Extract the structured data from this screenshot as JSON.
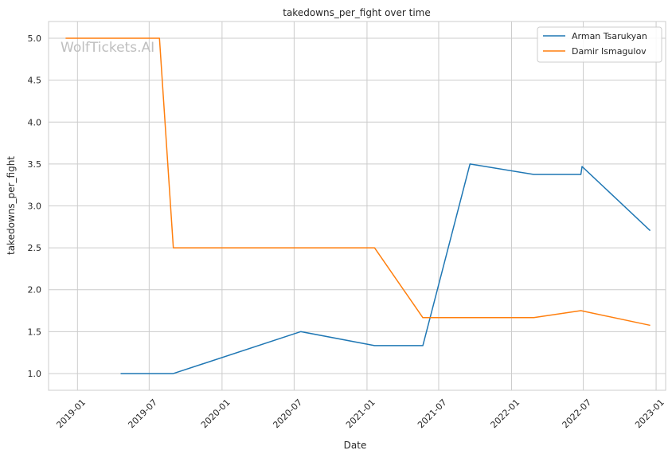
{
  "watermark": "WolfTickets.AI",
  "chart_data": {
    "type": "line",
    "title": "takedowns_per_fight over time",
    "xlabel": "Date",
    "ylabel": "takedowns_per_fight",
    "ylim": [
      0.8,
      5.2
    ],
    "xlim": [
      "2018-10-20",
      "2023-01-25"
    ],
    "grid": true,
    "legend_position": "top-right",
    "x_ticks": [
      "2019-01-01",
      "2019-07-01",
      "2020-01-01",
      "2020-07-01",
      "2021-01-01",
      "2021-07-01",
      "2022-01-01",
      "2022-07-01",
      "2023-01-01"
    ],
    "x_tick_labels": [
      "2019-01",
      "2019-07",
      "2020-01",
      "2020-07",
      "2021-01",
      "2021-07",
      "2022-01",
      "2022-07",
      "2023-01"
    ],
    "y_ticks": [
      1.0,
      1.5,
      2.0,
      2.5,
      3.0,
      3.5,
      4.0,
      4.5,
      5.0
    ],
    "y_tick_labels": [
      "1.0",
      "1.5",
      "2.0",
      "2.5",
      "3.0",
      "3.5",
      "4.0",
      "4.5",
      "5.0"
    ],
    "series": [
      {
        "name": "Arman Tsarukyan",
        "color": "#1f77b4",
        "points": [
          {
            "x": "2019-04-20",
            "y": 1.0
          },
          {
            "x": "2019-08-31",
            "y": 1.0
          },
          {
            "x": "2020-07-18",
            "y": 1.5
          },
          {
            "x": "2021-01-20",
            "y": 1.333
          },
          {
            "x": "2021-05-22",
            "y": 1.333
          },
          {
            "x": "2021-09-18",
            "y": 3.5
          },
          {
            "x": "2022-02-26",
            "y": 3.375
          },
          {
            "x": "2022-06-25",
            "y": 3.375
          },
          {
            "x": "2022-06-28",
            "y": 3.47
          },
          {
            "x": "2022-12-17",
            "y": 2.705
          }
        ]
      },
      {
        "name": "Damir Ismagulov",
        "color": "#ff7f0e",
        "points": [
          {
            "x": "2018-12-02",
            "y": 5.0
          },
          {
            "x": "2019-07-27",
            "y": 5.0
          },
          {
            "x": "2019-08-31",
            "y": 2.5
          },
          {
            "x": "2021-01-20",
            "y": 2.5
          },
          {
            "x": "2021-05-22",
            "y": 1.667
          },
          {
            "x": "2022-02-26",
            "y": 1.667
          },
          {
            "x": "2022-06-25",
            "y": 1.75
          },
          {
            "x": "2022-12-17",
            "y": 1.575
          }
        ]
      }
    ]
  }
}
